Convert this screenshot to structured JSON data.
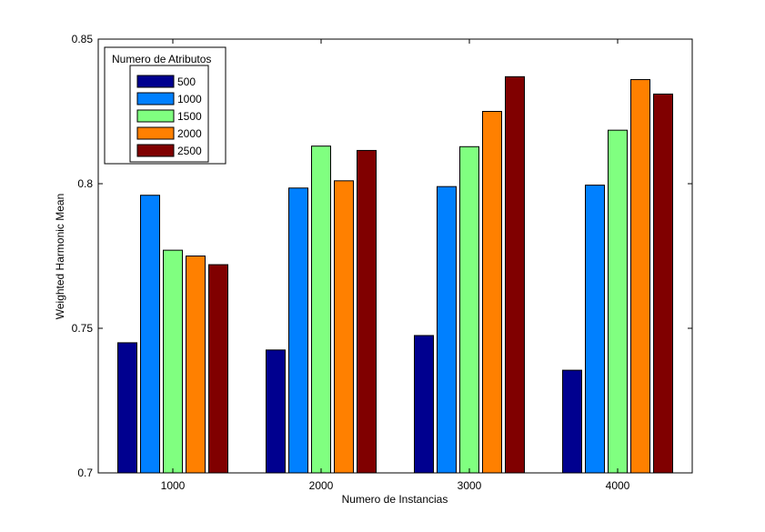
{
  "chart_data": {
    "type": "bar",
    "xlabel": "Numero de Instancias",
    "ylabel": "Weighted Harmonic Mean",
    "categories": [
      "1000",
      "2000",
      "3000",
      "4000"
    ],
    "ylim": [
      0.7,
      0.85
    ],
    "yticks": [
      "0.7",
      "0.75",
      "0.8",
      "0.85"
    ],
    "grid": false,
    "legend": {
      "title": "Numero de Atributos",
      "placement": "top-left"
    },
    "series": [
      {
        "name": "500",
        "color": "#00008f",
        "values": [
          0.745,
          0.7425,
          0.7475,
          0.7355
        ]
      },
      {
        "name": "1000",
        "color": "#0080ff",
        "values": [
          0.796,
          0.7985,
          0.799,
          0.7995
        ]
      },
      {
        "name": "1500",
        "color": "#80ff80",
        "values": [
          0.777,
          0.813,
          0.8128,
          0.8185
        ]
      },
      {
        "name": "2000",
        "color": "#ff8000",
        "values": [
          0.775,
          0.801,
          0.825,
          0.836
        ]
      },
      {
        "name": "2500",
        "color": "#800000",
        "values": [
          0.772,
          0.8115,
          0.837,
          0.831
        ]
      }
    ]
  }
}
